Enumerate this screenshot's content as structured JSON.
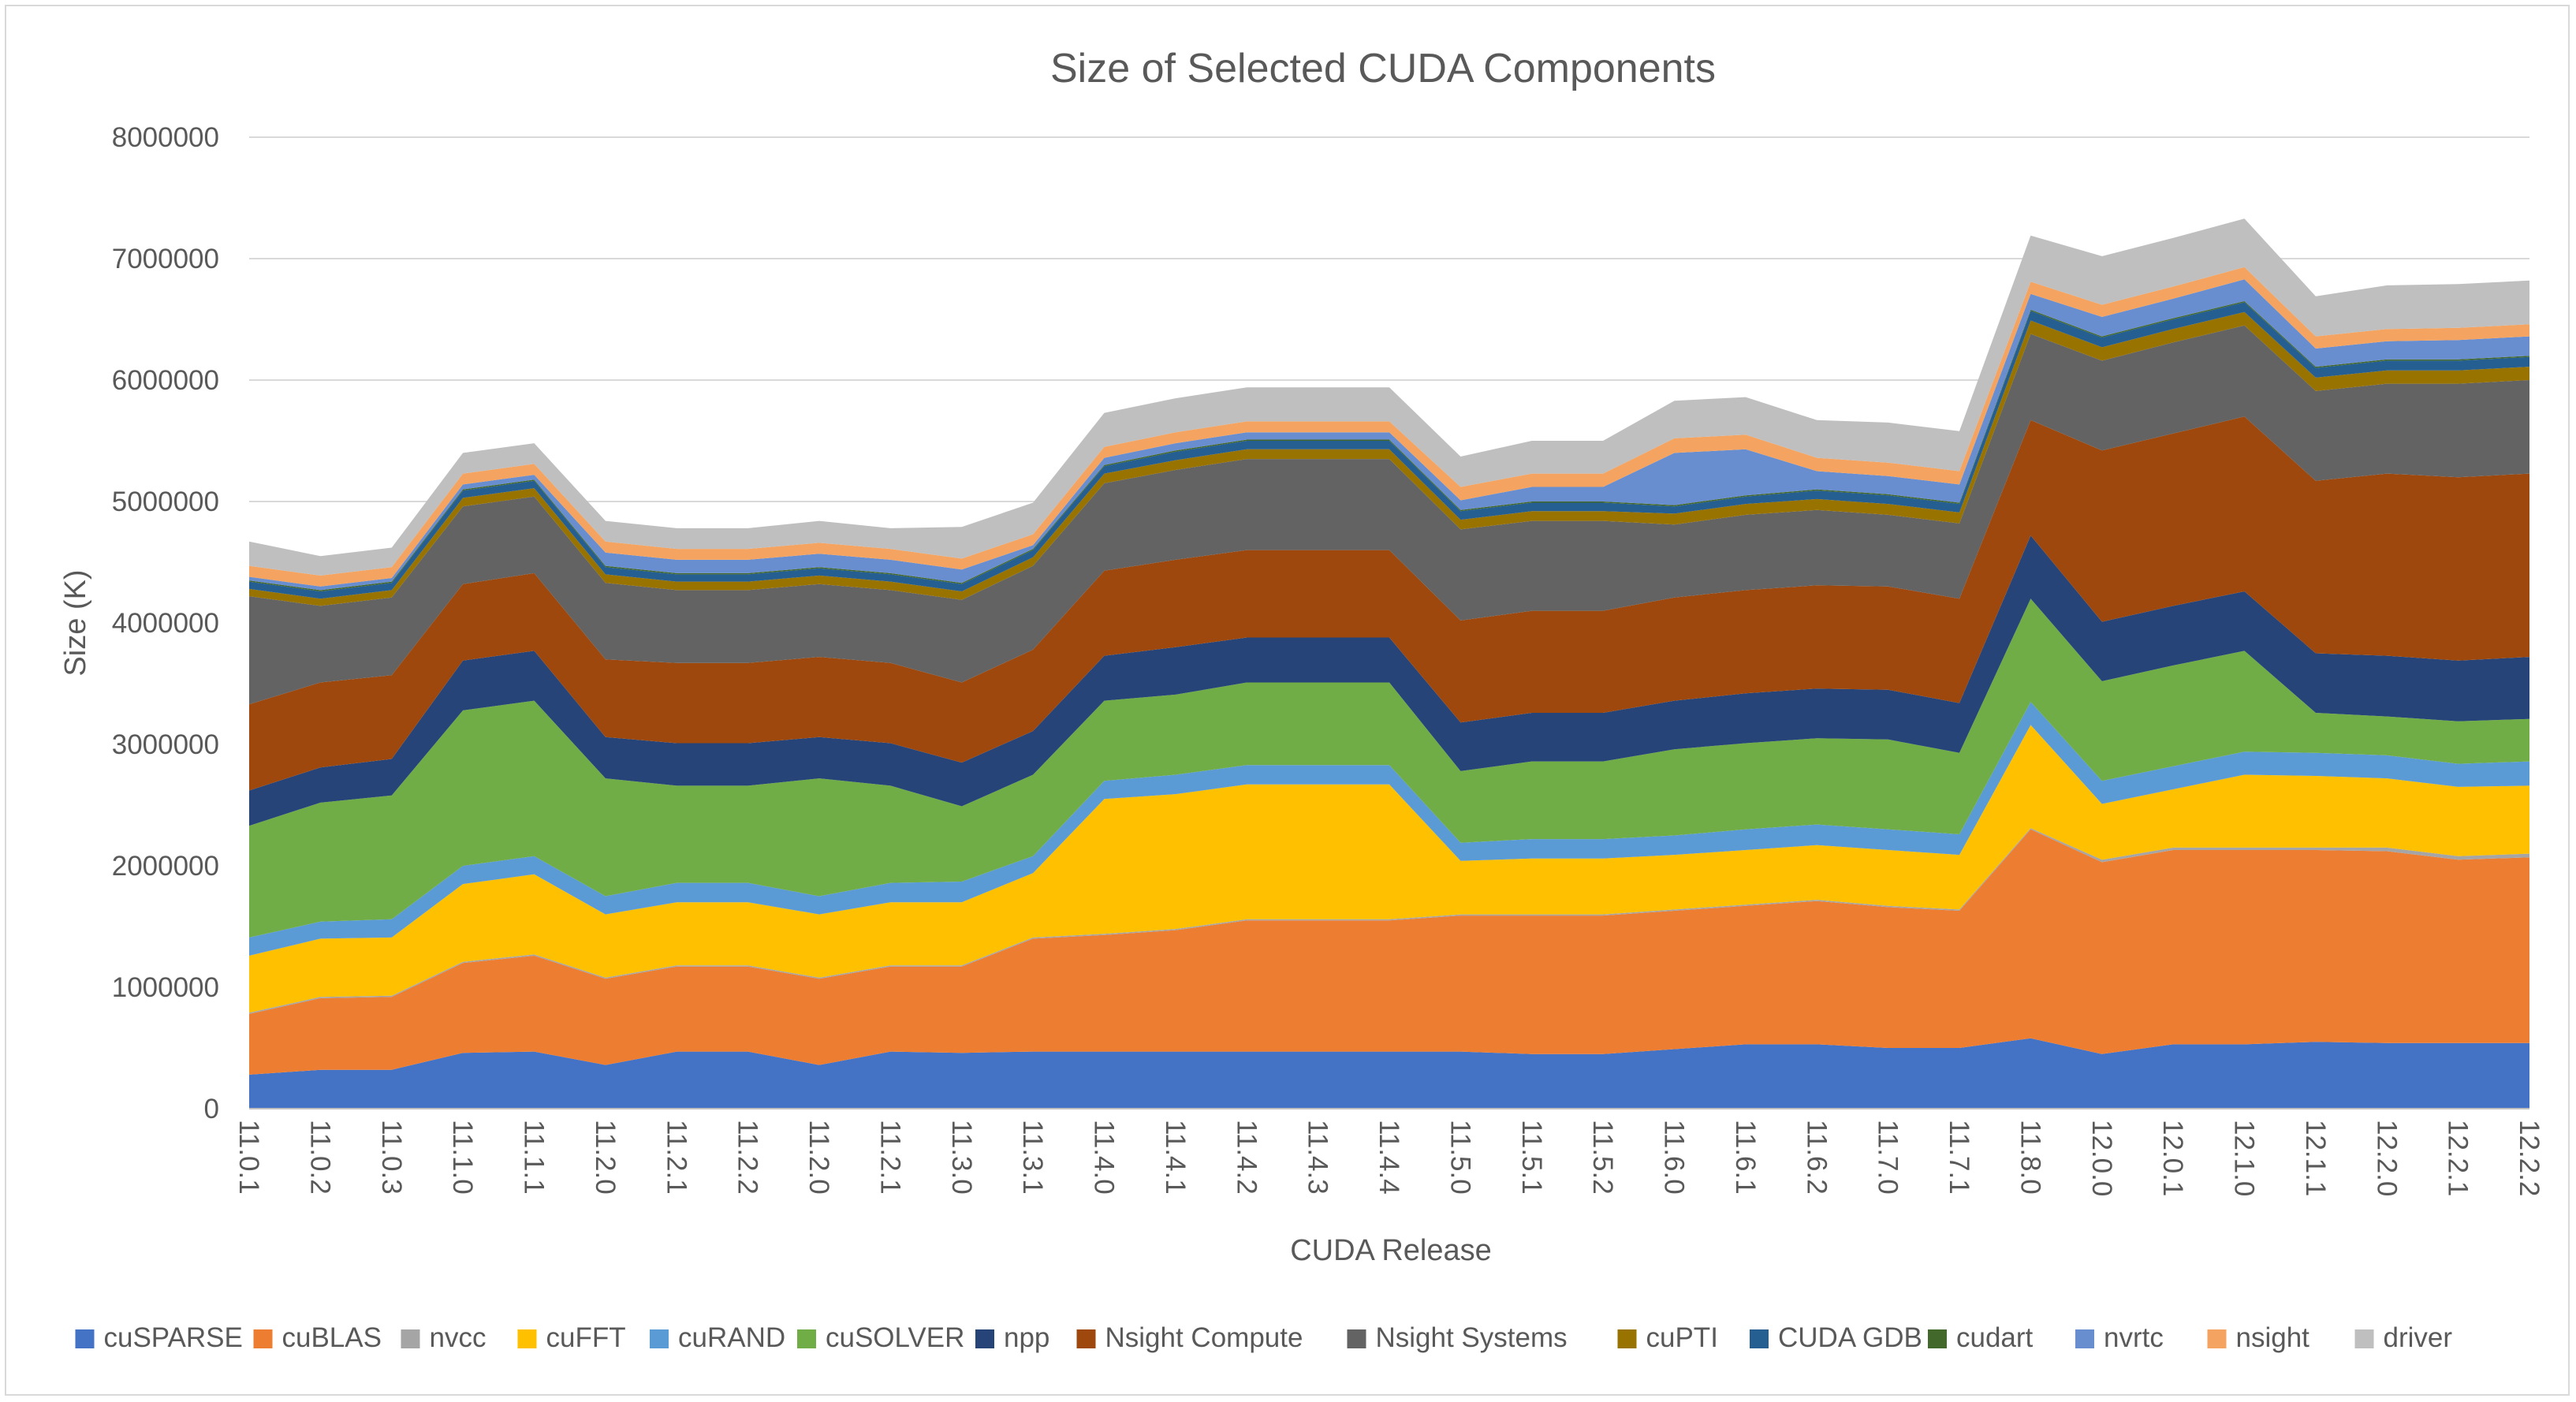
{
  "chart_data": {
    "type": "area",
    "stacked": true,
    "title": "Size of Selected CUDA Components",
    "xlabel": "CUDA Release",
    "ylabel": "Size (K)",
    "ylim": [
      0,
      8000000
    ],
    "yticks": [
      "0",
      "1000000",
      "2000000",
      "3000000",
      "4000000",
      "5000000",
      "6000000",
      "7000000",
      "8000000"
    ],
    "grid": true,
    "legend_position": "bottom",
    "categories": [
      "11.0.1",
      "11.0.2",
      "11.0.3",
      "11.1.0",
      "11.1.1",
      "11.2.0",
      "11.2.1",
      "11.2.2",
      "11.2.0",
      "11.2.1",
      "11.3.0",
      "11.3.1",
      "11.4.0",
      "11.4.1",
      "11.4.2",
      "11.4.3",
      "11.4.4",
      "11.5.0",
      "11.5.1",
      "11.5.2",
      "11.6.0",
      "11.6.1",
      "11.6.2",
      "11.7.0",
      "11.7.1",
      "11.8.0",
      "12.0.0",
      "12.0.1",
      "12.1.0",
      "12.1.1",
      "12.2.0",
      "12.2.1",
      "12.2.2"
    ],
    "series": [
      {
        "name": "cuSPARSE",
        "color": "#4472C4",
        "values": [
          280000,
          320000,
          320000,
          460000,
          470000,
          360000,
          470000,
          470000,
          360000,
          470000,
          460000,
          470000,
          470000,
          470000,
          470000,
          470000,
          470000,
          470000,
          450000,
          450000,
          490000,
          530000,
          530000,
          500000,
          500000,
          580000,
          450000,
          530000,
          530000,
          550000,
          540000,
          540000,
          540000
        ]
      },
      {
        "name": "cuBLAS",
        "color": "#ED7D31",
        "values": [
          500000,
          590000,
          600000,
          740000,
          790000,
          710000,
          700000,
          700000,
          710000,
          700000,
          710000,
          930000,
          960000,
          1000000,
          1080000,
          1080000,
          1080000,
          1120000,
          1140000,
          1140000,
          1140000,
          1140000,
          1180000,
          1160000,
          1130000,
          1720000,
          1580000,
          1600000,
          1600000,
          1580000,
          1580000,
          1510000,
          1530000
        ]
      },
      {
        "name": "nvcc",
        "color": "#A5A5A5",
        "values": [
          10000,
          10000,
          10000,
          10000,
          10000,
          10000,
          10000,
          10000,
          10000,
          10000,
          10000,
          10000,
          10000,
          10000,
          10000,
          10000,
          10000,
          10000,
          10000,
          10000,
          10000,
          10000,
          10000,
          10000,
          10000,
          10000,
          20000,
          20000,
          20000,
          20000,
          30000,
          30000,
          30000
        ]
      },
      {
        "name": "cuFFT",
        "color": "#FFC000",
        "values": [
          470000,
          480000,
          480000,
          640000,
          660000,
          520000,
          520000,
          520000,
          520000,
          520000,
          520000,
          530000,
          1110000,
          1110000,
          1110000,
          1110000,
          1110000,
          440000,
          460000,
          460000,
          450000,
          450000,
          450000,
          460000,
          450000,
          850000,
          460000,
          480000,
          600000,
          590000,
          570000,
          570000,
          560000
        ]
      },
      {
        "name": "cuRAND",
        "color": "#5B9BD5",
        "values": [
          150000,
          140000,
          150000,
          150000,
          150000,
          150000,
          160000,
          160000,
          150000,
          160000,
          170000,
          140000,
          150000,
          160000,
          160000,
          160000,
          160000,
          150000,
          160000,
          160000,
          160000,
          170000,
          170000,
          170000,
          170000,
          190000,
          190000,
          190000,
          190000,
          190000,
          190000,
          190000,
          200000
        ]
      },
      {
        "name": "cuSOLVER",
        "color": "#70AD47",
        "values": [
          920000,
          980000,
          1020000,
          1280000,
          1280000,
          970000,
          800000,
          800000,
          970000,
          800000,
          620000,
          670000,
          660000,
          660000,
          680000,
          680000,
          680000,
          590000,
          640000,
          640000,
          710000,
          710000,
          710000,
          740000,
          670000,
          850000,
          820000,
          830000,
          830000,
          330000,
          320000,
          350000,
          350000
        ]
      },
      {
        "name": "npp",
        "color": "#264478",
        "values": [
          290000,
          290000,
          300000,
          410000,
          410000,
          340000,
          350000,
          350000,
          340000,
          350000,
          360000,
          360000,
          370000,
          390000,
          370000,
          370000,
          370000,
          400000,
          400000,
          400000,
          400000,
          410000,
          410000,
          410000,
          410000,
          520000,
          490000,
          490000,
          490000,
          490000,
          500000,
          500000,
          510000
        ]
      },
      {
        "name": "Nsight Compute",
        "color": "#9E480E",
        "values": [
          710000,
          700000,
          690000,
          630000,
          640000,
          640000,
          660000,
          660000,
          660000,
          660000,
          660000,
          670000,
          700000,
          720000,
          720000,
          720000,
          720000,
          840000,
          840000,
          840000,
          850000,
          850000,
          850000,
          850000,
          860000,
          950000,
          1410000,
          1420000,
          1440000,
          1420000,
          1500000,
          1510000,
          1510000
        ]
      },
      {
        "name": "Nsight Systems",
        "color": "#636363",
        "values": [
          890000,
          630000,
          640000,
          640000,
          630000,
          630000,
          600000,
          600000,
          600000,
          600000,
          680000,
          690000,
          720000,
          740000,
          750000,
          750000,
          750000,
          750000,
          740000,
          740000,
          600000,
          620000,
          620000,
          590000,
          620000,
          710000,
          740000,
          750000,
          750000,
          740000,
          740000,
          770000,
          770000
        ]
      },
      {
        "name": "cuPTI",
        "color": "#997300",
        "values": [
          60000,
          60000,
          60000,
          70000,
          70000,
          70000,
          70000,
          70000,
          70000,
          70000,
          70000,
          70000,
          80000,
          80000,
          80000,
          80000,
          80000,
          80000,
          80000,
          80000,
          90000,
          90000,
          90000,
          90000,
          90000,
          110000,
          110000,
          110000,
          110000,
          110000,
          110000,
          110000,
          110000
        ]
      },
      {
        "name": "CUDA GDB",
        "color": "#255E91",
        "values": [
          60000,
          60000,
          60000,
          60000,
          60000,
          60000,
          60000,
          60000,
          60000,
          60000,
          60000,
          60000,
          60000,
          70000,
          70000,
          70000,
          70000,
          70000,
          70000,
          70000,
          60000,
          60000,
          70000,
          70000,
          70000,
          80000,
          80000,
          80000,
          80000,
          80000,
          80000,
          80000,
          80000
        ]
      },
      {
        "name": "cudart",
        "color": "#43682B",
        "values": [
          10000,
          10000,
          10000,
          10000,
          10000,
          10000,
          10000,
          10000,
          10000,
          10000,
          10000,
          10000,
          10000,
          10000,
          10000,
          10000,
          10000,
          10000,
          10000,
          10000,
          10000,
          10000,
          10000,
          10000,
          10000,
          10000,
          10000,
          10000,
          10000,
          10000,
          10000,
          10000,
          10000
        ]
      },
      {
        "name": "nvrtc",
        "color": "#698ED0",
        "values": [
          30000,
          30000,
          30000,
          40000,
          40000,
          110000,
          110000,
          110000,
          110000,
          110000,
          110000,
          30000,
          60000,
          60000,
          60000,
          60000,
          60000,
          80000,
          120000,
          120000,
          430000,
          380000,
          150000,
          150000,
          150000,
          130000,
          160000,
          160000,
          180000,
          150000,
          150000,
          160000,
          160000
        ]
      },
      {
        "name": "nsight",
        "color": "#F4A460",
        "values": [
          90000,
          90000,
          90000,
          90000,
          90000,
          90000,
          90000,
          90000,
          90000,
          90000,
          90000,
          90000,
          90000,
          90000,
          90000,
          90000,
          90000,
          110000,
          110000,
          110000,
          120000,
          120000,
          110000,
          110000,
          110000,
          100000,
          100000,
          100000,
          100000,
          100000,
          100000,
          100000,
          100000
        ]
      },
      {
        "name": "driver",
        "color": "#BFBFBF",
        "values": [
          200000,
          160000,
          160000,
          170000,
          170000,
          170000,
          170000,
          170000,
          180000,
          170000,
          260000,
          260000,
          280000,
          280000,
          280000,
          280000,
          280000,
          250000,
          270000,
          270000,
          310000,
          310000,
          310000,
          330000,
          330000,
          380000,
          400000,
          400000,
          400000,
          330000,
          360000,
          360000,
          360000
        ]
      }
    ]
  }
}
